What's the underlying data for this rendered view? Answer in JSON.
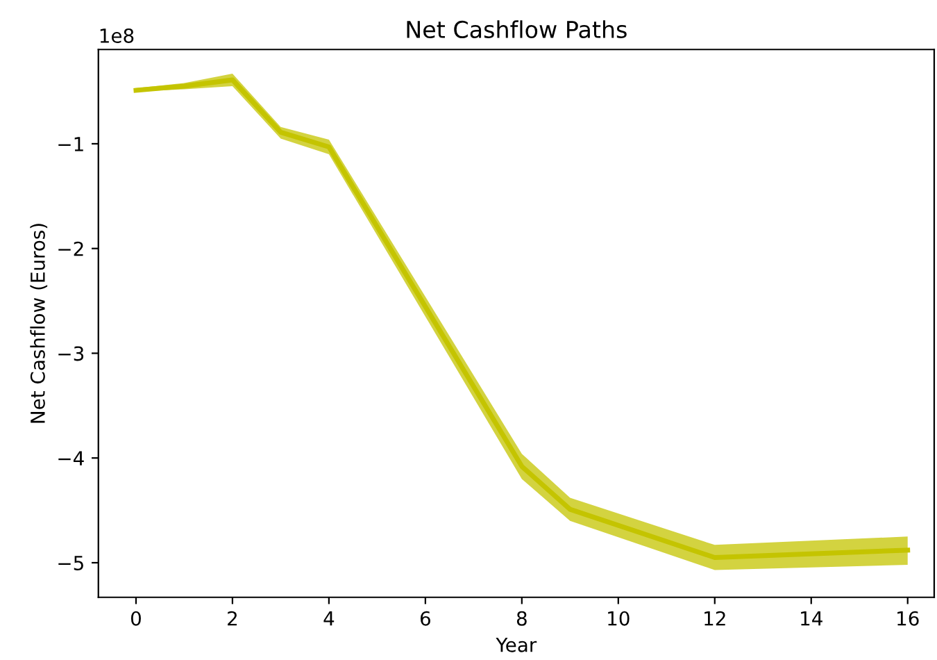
{
  "chart_data": {
    "type": "line",
    "title": "Net Cashflow Paths",
    "xlabel": "Year",
    "ylabel": "Net Cashflow (Euros)",
    "annotations": [
      "1e8"
    ],
    "series": [
      {
        "color": "#c4c400",
        "x": [
          0,
          1,
          2,
          3,
          4,
          8,
          9,
          12,
          16
        ],
        "values": [
          -0.49,
          -0.45,
          -0.39,
          -0.89,
          -1.03,
          -4.08,
          -4.49,
          -4.95,
          -4.88
        ],
        "lower": [
          -0.5,
          -0.48,
          -0.45,
          -0.95,
          -1.1,
          -4.2,
          -4.6,
          -5.07,
          -5.02
        ],
        "upper": [
          -0.47,
          -0.42,
          -0.33,
          -0.84,
          -0.96,
          -3.96,
          -4.38,
          -4.83,
          -4.75
        ]
      }
    ],
    "xlim": [
      -0.78,
      16.55
    ],
    "ylim": [
      -5.33,
      -0.1
    ],
    "xticks": [
      0,
      2,
      4,
      6,
      8,
      10,
      12,
      14,
      16
    ],
    "yticks": [
      -5,
      -4,
      -3,
      -2,
      -1
    ],
    "grid": false,
    "legend": false
  }
}
